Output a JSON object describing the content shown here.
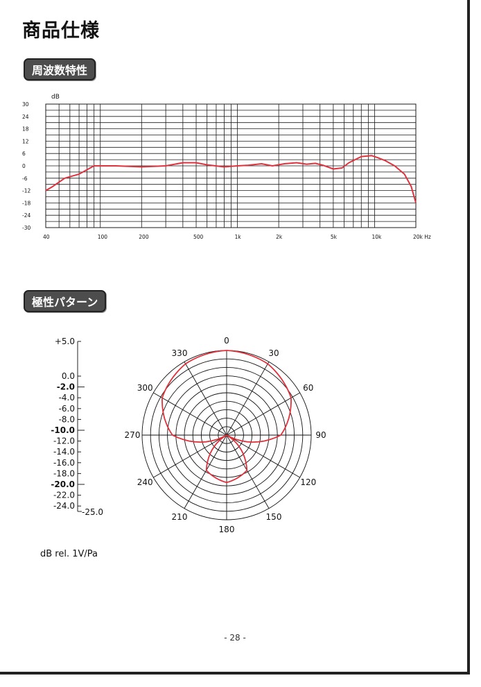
{
  "page": {
    "title": "商品仕様",
    "page_number": "- 28 -"
  },
  "sections": {
    "frequency_response": "周波数特性",
    "polar_pattern": "極性パターン"
  },
  "colors": {
    "curve": "#e0323c",
    "grid": "#1a1a1a",
    "badge_bg": "#4d4d4d"
  },
  "chart_data": [
    {
      "type": "line",
      "ylabel": "dB",
      "xscale": "log",
      "xlim": [
        40,
        20000
      ],
      "ylim": [
        -30,
        30
      ],
      "y_ticks": [
        30,
        24,
        18,
        12,
        6,
        0,
        -6,
        -12,
        -18,
        -24,
        -30
      ],
      "x_ticks": [
        {
          "label": "40",
          "value": 40
        },
        {
          "label": "100",
          "value": 100
        },
        {
          "label": "200",
          "value": 200
        },
        {
          "label": "500",
          "value": 500
        },
        {
          "label": "1k",
          "value": 1000
        },
        {
          "label": "2k",
          "value": 2000
        },
        {
          "label": "5k",
          "value": 5000
        },
        {
          "label": "10k",
          "value": 10000
        },
        {
          "label": "20k Hz",
          "value": 20000
        }
      ],
      "grid": true,
      "series": [
        {
          "x": [
            40,
            45,
            55,
            70,
            90,
            130,
            200,
            300,
            400,
            500,
            600,
            800,
            1000,
            1200,
            1500,
            1800,
            2200,
            2700,
            3200,
            3700,
            4200,
            5000,
            5800,
            6500,
            8000,
            9500,
            10500,
            12000,
            14000,
            16500,
            18500,
            20000
          ],
          "y": [
            -12,
            -10,
            -6,
            -4,
            0,
            0,
            -0.5,
            0,
            1.5,
            1.5,
            0.5,
            -0.5,
            0,
            0.3,
            1,
            0,
            1,
            1.5,
            0.8,
            1.2,
            0.3,
            -1.5,
            -1,
            1.5,
            4.5,
            5,
            4,
            2.5,
            0,
            -4,
            -10,
            -18
          ]
        }
      ]
    },
    {
      "type": "polar",
      "angle_labels": [
        "0",
        "30",
        "60",
        "90",
        "120",
        "150",
        "180",
        "210",
        "240",
        "270",
        "300",
        "330"
      ],
      "scale_labels": [
        {
          "text": "+5.0",
          "bold": false,
          "db": 5
        },
        {
          "text": "0.0",
          "bold": false,
          "db": 0
        },
        {
          "text": "-2.0",
          "bold": true,
          "db": -2
        },
        {
          "text": "-4.0",
          "bold": false,
          "db": -4
        },
        {
          "text": "-6.0",
          "bold": false,
          "db": -6
        },
        {
          "text": "-8.0",
          "bold": false,
          "db": -8
        },
        {
          "text": "-10.0",
          "bold": true,
          "db": -10
        },
        {
          "text": "-12.0",
          "bold": false,
          "db": -12
        },
        {
          "text": "-14.0",
          "bold": false,
          "db": -14
        },
        {
          "text": "-16.0",
          "bold": false,
          "db": -16
        },
        {
          "text": "-18.0",
          "bold": false,
          "db": -18
        },
        {
          "text": "-20.0",
          "bold": true,
          "db": -20
        },
        {
          "text": "-22.0",
          "bold": false,
          "db": -22
        },
        {
          "text": "-24.0",
          "bold": false,
          "db": -24
        }
      ],
      "scale_end_label": "-25.0",
      "unit_label": "dB rel. 1V/Pa",
      "pattern": "supercardioid",
      "series": [
        {
          "angle_deg": [
            0,
            30,
            60,
            90,
            120,
            150,
            180,
            210,
            240,
            270,
            300,
            330
          ],
          "db": [
            0,
            -0.7,
            -3,
            -9,
            -25,
            -13,
            -11,
            -13,
            -25,
            -9,
            -3,
            -0.7
          ]
        }
      ]
    }
  ]
}
